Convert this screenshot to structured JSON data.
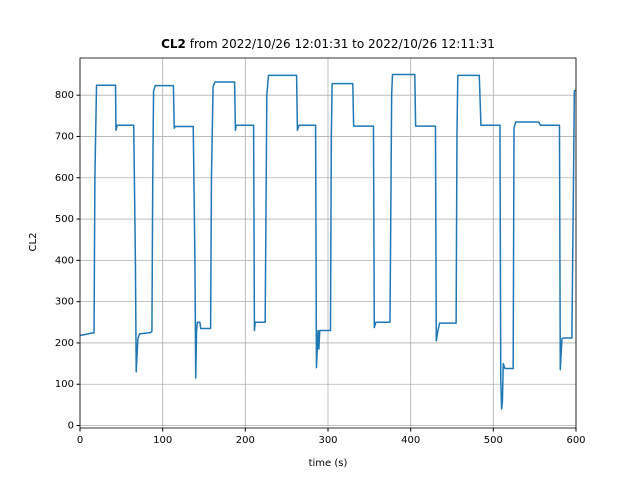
{
  "chart_data": {
    "type": "line",
    "title_bold": "CL2",
    "title": "from 2022/10/26 12:01:31 to 2022/10/26 12:11:31",
    "xlabel": "time (s)",
    "ylabel": "CL2",
    "x": [
      0,
      10,
      14,
      17,
      18,
      20,
      43,
      43.5,
      45,
      65,
      67,
      68,
      70,
      72,
      85,
      87,
      88,
      89,
      91,
      113,
      114,
      115,
      137,
      139,
      140,
      141,
      142,
      145,
      146,
      158,
      159,
      161,
      163,
      187,
      188,
      189,
      210,
      211,
      212,
      224,
      226,
      228,
      262,
      263,
      265,
      285,
      286,
      288,
      289,
      290,
      293,
      303,
      304,
      305,
      330,
      331,
      355,
      356,
      358,
      375,
      377,
      378,
      405,
      406,
      430,
      431,
      433,
      435,
      455,
      456,
      457,
      483,
      485,
      508,
      509,
      510,
      511,
      512,
      514,
      524,
      525,
      527,
      555,
      557,
      580,
      581,
      583,
      585,
      595,
      597,
      598,
      600
    ],
    "values": [
      218,
      222,
      224,
      224,
      600,
      824,
      824,
      715,
      727,
      727,
      400,
      130,
      210,
      222,
      225,
      228,
      600,
      810,
      823,
      823,
      720,
      724,
      724,
      400,
      115,
      230,
      250,
      250,
      235,
      235,
      600,
      820,
      832,
      832,
      715,
      727,
      727,
      230,
      250,
      250,
      800,
      848,
      848,
      715,
      727,
      727,
      140,
      230,
      185,
      230,
      230,
      230,
      700,
      828,
      828,
      725,
      725,
      237,
      250,
      250,
      800,
      850,
      850,
      725,
      725,
      205,
      230,
      248,
      248,
      700,
      848,
      848,
      727,
      727,
      110,
      40,
      60,
      150,
      138,
      138,
      720,
      735,
      735,
      727,
      727,
      135,
      210,
      212,
      212,
      600,
      810,
      812
    ],
    "color": "#1f77b4",
    "xlim": [
      0,
      600
    ],
    "ylim": [
      -6,
      890
    ],
    "xticks": [
      0,
      100,
      200,
      300,
      400,
      500,
      600
    ],
    "yticks": [
      0,
      100,
      200,
      300,
      400,
      500,
      600,
      700,
      800
    ],
    "grid": true
  }
}
